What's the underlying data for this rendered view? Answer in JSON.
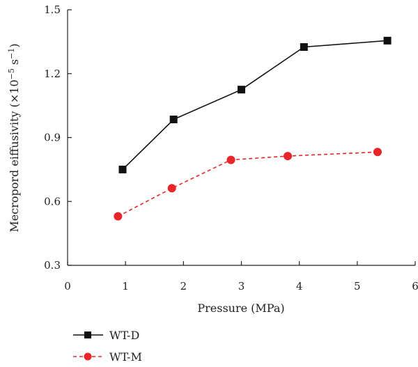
{
  "chart_data": {
    "type": "line",
    "title": "",
    "xlabel": "Pressure (MPa)",
    "ylabel_main": "Mecropord eiffusivity (×10",
    "ylabel_exp1": "−5",
    "ylabel_mid": " s",
    "ylabel_exp2": "−1",
    "ylabel_end": ")",
    "xlim": [
      0,
      6
    ],
    "ylim": [
      0.3,
      1.5
    ],
    "xticks": [
      0,
      1,
      2,
      3,
      4,
      5,
      6
    ],
    "yticks": [
      0.3,
      0.6,
      0.9,
      1.2,
      1.5
    ],
    "xtick_labels": [
      "0",
      "1",
      "2",
      "3",
      "4",
      "5",
      "6"
    ],
    "ytick_labels": [
      "0.3",
      "0.6",
      "0.9",
      "1.2",
      "1.5"
    ],
    "grid": false,
    "legend_position": "bottom-left",
    "series": [
      {
        "name": "WT-D",
        "color": "#111111",
        "marker": "square",
        "line_style": "solid",
        "x": [
          0.95,
          1.83,
          3.0,
          4.08,
          5.52
        ],
        "y": [
          0.75,
          0.985,
          1.125,
          1.325,
          1.355
        ]
      },
      {
        "name": "WT-M",
        "color": "#e8262a",
        "marker": "circle",
        "line_style": "dashed",
        "x": [
          0.87,
          1.8,
          2.82,
          3.8,
          5.35
        ],
        "y": [
          0.53,
          0.662,
          0.795,
          0.813,
          0.832
        ]
      }
    ]
  }
}
